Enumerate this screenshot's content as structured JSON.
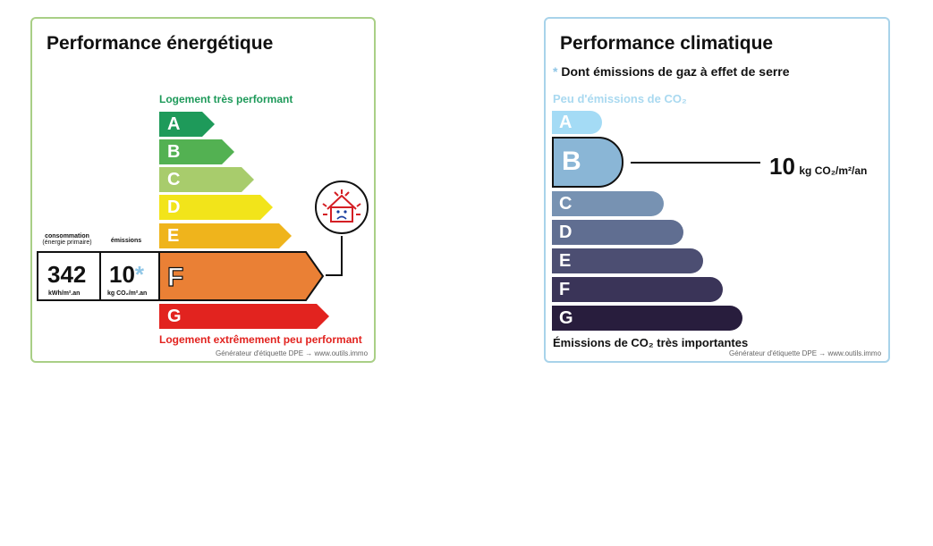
{
  "energy": {
    "title": "Performance énergétique",
    "top_caption": "Logement très performant",
    "bottom_caption": "Logement extrêmement peu performant",
    "footer": "Générateur d'étiquette DPE → www.outils.immo",
    "consumption_label_1": "consommation",
    "consumption_label_2": "(énergie primaire)",
    "emissions_label": "émissions",
    "consumption_value": "342",
    "consumption_unit": "kWh/m².an",
    "emissions_value": "10",
    "emissions_star": "*",
    "emissions_unit": "kg CO₂/m².an",
    "selected_class": "F",
    "classes": [
      {
        "letter": "A",
        "color": "#1e9a5a"
      },
      {
        "letter": "B",
        "color": "#53b152"
      },
      {
        "letter": "C",
        "color": "#a8cc6c"
      },
      {
        "letter": "D",
        "color": "#f2e41a"
      },
      {
        "letter": "E",
        "color": "#efb41c"
      },
      {
        "letter": "F",
        "color": "#ea8035"
      },
      {
        "letter": "G",
        "color": "#e2231f"
      }
    ],
    "colors": {
      "top_caption": "#1e9a5a",
      "bottom_caption": "#e2231f",
      "border": "#a9cf86"
    }
  },
  "climate": {
    "title": "Performance climatique",
    "note_star": "*",
    "note": "Dont émissions de gaz à effet de serre",
    "top_caption": "Peu d'émissions de CO₂",
    "bottom_caption": "Émissions de CO₂ très importantes",
    "footer": "Générateur d'étiquette DPE → www.outils.immo",
    "value": "10",
    "unit": "kg CO₂/m²/an",
    "selected_class": "B",
    "classes": [
      {
        "letter": "A",
        "color": "#a4dbf5"
      },
      {
        "letter": "B",
        "color": "#8ab6d6"
      },
      {
        "letter": "C",
        "color": "#7792b2"
      },
      {
        "letter": "D",
        "color": "#606e91"
      },
      {
        "letter": "E",
        "color": "#4c4e72"
      },
      {
        "letter": "F",
        "color": "#3a3458"
      },
      {
        "letter": "G",
        "color": "#281d3d"
      }
    ],
    "colors": {
      "top_caption": "#a9d9f0",
      "border": "#a8d3ea"
    }
  }
}
